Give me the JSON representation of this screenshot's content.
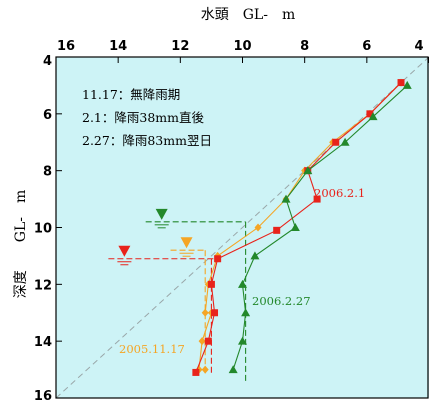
{
  "chart_data": {
    "type": "line",
    "title": "水頭　GL-　m",
    "ylabel": "深度　　GL-　m",
    "xlim": [
      16,
      4
    ],
    "ylim": [
      4,
      16
    ],
    "x_ticks": [
      16,
      14,
      12,
      10,
      8,
      6,
      4
    ],
    "y_ticks": [
      4,
      6,
      8,
      10,
      12,
      14,
      16
    ],
    "plot_bg": "#cdf3f6",
    "legend": [
      "11.17：無降雨期",
      "2.1：降雨38mm直後",
      "2.27：降雨83mm翌日"
    ],
    "hydrostatic_line": {
      "x": [
        16,
        4
      ],
      "y": [
        16,
        4
      ],
      "color": "#9aa7a9"
    },
    "series": [
      {
        "name": "2005.11.17",
        "color": "#f5a524",
        "marker": "diamond",
        "label": "2005.11.17",
        "x": [
          4.9,
          5.9,
          7.1,
          8.0,
          8.6,
          9.5,
          10.8,
          11.1,
          11.2,
          11.0,
          11.3,
          11.4,
          11.2
        ],
        "y": [
          4.9,
          6.0,
          7.0,
          8.0,
          9.0,
          10.0,
          11.0,
          12.0,
          13.0,
          13.0,
          14.0,
          15.0,
          15.0
        ],
        "water_level": 10.8,
        "water_level_x": 11.8,
        "water_level_guide": "vertical line at x=11.2 from y=10.8 to y=15.2"
      },
      {
        "name": "2006.2.1",
        "color": "#e8231b",
        "marker": "square",
        "label": "2006.2.1",
        "x": [
          4.9,
          5.9,
          7.0,
          7.9,
          7.6,
          8.9,
          10.8,
          11.0,
          10.9,
          11.1,
          11.5
        ],
        "y": [
          4.9,
          6.0,
          7.0,
          8.0,
          9.0,
          10.1,
          11.1,
          12.0,
          13.0,
          14.0,
          15.1
        ],
        "water_level": 11.1,
        "water_level_x": 13.8,
        "water_level_guide": "vertical line at x=11.0 from y=11.1 to y=15.2"
      },
      {
        "name": "2006.2.27",
        "color": "#23882b",
        "marker": "triangle",
        "label": "2006.2.27",
        "x": [
          4.7,
          5.8,
          6.7,
          7.9,
          8.6,
          8.3,
          9.6,
          10.0,
          9.9,
          10.0,
          10.3
        ],
        "y": [
          5.0,
          6.1,
          7.0,
          8.0,
          9.0,
          10.0,
          11.0,
          12.0,
          13.0,
          14.0,
          15.0
        ],
        "water_level": 9.8,
        "water_level_x": 12.6,
        "water_level_guide": "vertical line at x=9.9 from y=9.8 to y=15.4"
      }
    ]
  }
}
